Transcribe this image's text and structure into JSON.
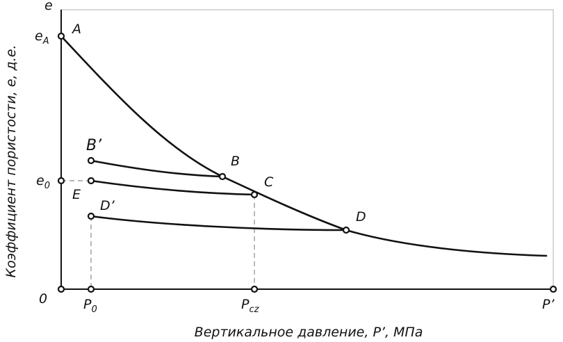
{
  "axes": {
    "y_label": "Коэффициент пористости, е, д.е.",
    "x_label": "Вертикальное давление, P’, МПа",
    "y_top": "е",
    "origin": "0"
  },
  "y_ticks": {
    "eA": {
      "main": "e",
      "sub": "A"
    },
    "e0": {
      "main": "e",
      "sub": "0"
    }
  },
  "x_ticks": {
    "p0": {
      "main": "P",
      "sub": "0"
    },
    "pcz": {
      "main": "P",
      "sub": "cz"
    },
    "p_end": "P’"
  },
  "points": {
    "A": "A",
    "B_prime": "B’",
    "B": "B",
    "C": "C",
    "D": "D",
    "D_prime": "D’",
    "E": "E"
  }
}
